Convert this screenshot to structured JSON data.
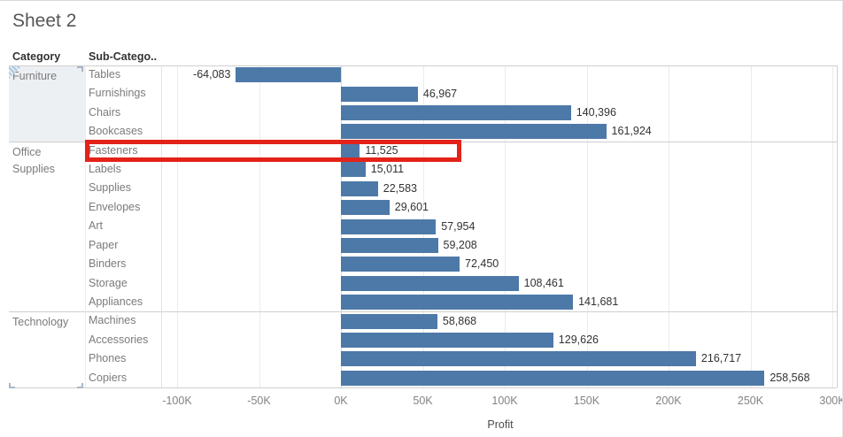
{
  "title": "Sheet 2",
  "columns": {
    "category": "Category",
    "subcategory": "Sub-Catego.."
  },
  "colors": {
    "bar": "#4d79a8",
    "highlight_border": "#e32219",
    "selected_category_bg": "#edf0f3",
    "separator": "#cfcfcf",
    "gridline": "#ebebeb"
  },
  "axis": {
    "label": "Profit",
    "ticks": [
      {
        "value": -100000,
        "label": "-100K"
      },
      {
        "value": -50000,
        "label": "-50K"
      },
      {
        "value": 0,
        "label": "0K"
      },
      {
        "value": 50000,
        "label": "50K"
      },
      {
        "value": 100000,
        "label": "100K"
      },
      {
        "value": 150000,
        "label": "150K"
      },
      {
        "value": 200000,
        "label": "200K"
      },
      {
        "value": 250000,
        "label": "250K"
      },
      {
        "value": 300000,
        "label": "300K"
      }
    ]
  },
  "chart_data": {
    "type": "bar",
    "orientation": "horizontal",
    "title": "Sheet 2",
    "xlabel": "Profit",
    "xlim": [
      -108000,
      303000
    ],
    "grid": true,
    "highlighted_item": "Fasteners",
    "groups": [
      {
        "category": "Furniture",
        "selected": true,
        "items": [
          {
            "label": "Tables",
            "value": -64083,
            "display": "-64,083"
          },
          {
            "label": "Furnishings",
            "value": 46967,
            "display": "46,967"
          },
          {
            "label": "Chairs",
            "value": 140396,
            "display": "140,396"
          },
          {
            "label": "Bookcases",
            "value": 161924,
            "display": "161,924"
          }
        ]
      },
      {
        "category": "Office Supplies",
        "selected": false,
        "items": [
          {
            "label": "Fasteners",
            "value": 11525,
            "display": "11,525"
          },
          {
            "label": "Labels",
            "value": 15011,
            "display": "15,011"
          },
          {
            "label": "Supplies",
            "value": 22583,
            "display": "22,583"
          },
          {
            "label": "Envelopes",
            "value": 29601,
            "display": "29,601"
          },
          {
            "label": "Art",
            "value": 57954,
            "display": "57,954"
          },
          {
            "label": "Paper",
            "value": 59208,
            "display": "59,208"
          },
          {
            "label": "Binders",
            "value": 72450,
            "display": "72,450"
          },
          {
            "label": "Storage",
            "value": 108461,
            "display": "108,461"
          },
          {
            "label": "Appliances",
            "value": 141681,
            "display": "141,681"
          }
        ]
      },
      {
        "category": "Technology",
        "selected": false,
        "items": [
          {
            "label": "Machines",
            "value": 58868,
            "display": "58,868"
          },
          {
            "label": "Accessories",
            "value": 129626,
            "display": "129,626"
          },
          {
            "label": "Phones",
            "value": 216717,
            "display": "216,717"
          },
          {
            "label": "Copiers",
            "value": 258568,
            "display": "258,568"
          }
        ]
      }
    ]
  }
}
